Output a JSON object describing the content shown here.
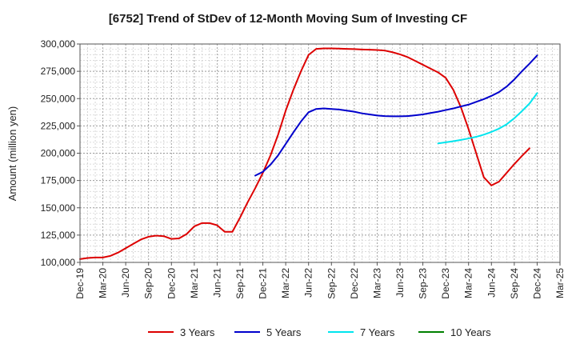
{
  "chart_data": {
    "type": "line",
    "title": "[6752]  Trend of StDev of 12-Month Moving Sum of Investing CF",
    "xlabel": "",
    "ylabel": "Amount (million yen)",
    "ylim": [
      100000,
      300000
    ],
    "yticks": [
      100000,
      125000,
      150000,
      175000,
      200000,
      225000,
      250000,
      275000,
      300000
    ],
    "ytick_labels": [
      "100,000",
      "125,000",
      "150,000",
      "175,000",
      "200,000",
      "225,000",
      "250,000",
      "275,000",
      "300,000"
    ],
    "xticks": [
      "Dec-19",
      "Mar-20",
      "Jun-20",
      "Sep-20",
      "Dec-20",
      "Mar-21",
      "Jun-21",
      "Sep-21",
      "Dec-21",
      "Mar-22",
      "Jun-22",
      "Sep-22",
      "Dec-22",
      "Mar-23",
      "Jun-23",
      "Sep-23",
      "Dec-23",
      "Mar-24",
      "Jun-24",
      "Sep-24",
      "Dec-24",
      "Mar-25"
    ],
    "x_start": "Dec-19",
    "grid": true,
    "legend_position": "bottom",
    "series": [
      {
        "name": "3 Years",
        "color": "#dd0000",
        "points": [
          [
            "Dec-19",
            103000
          ],
          [
            "Jan-20",
            104000
          ],
          [
            "Feb-20",
            104500
          ],
          [
            "Mar-20",
            104500
          ],
          [
            "Apr-20",
            106000
          ],
          [
            "May-20",
            109000
          ],
          [
            "Jun-20",
            113000
          ],
          [
            "Jul-20",
            117000
          ],
          [
            "Aug-20",
            121000
          ],
          [
            "Sep-20",
            123500
          ],
          [
            "Oct-20",
            124500
          ],
          [
            "Nov-20",
            124000
          ],
          [
            "Dec-20",
            121500
          ],
          [
            "Jan-21",
            122000
          ],
          [
            "Feb-21",
            126000
          ],
          [
            "Mar-21",
            133000
          ],
          [
            "Apr-21",
            136000
          ],
          [
            "May-21",
            136000
          ],
          [
            "Jun-21",
            134000
          ],
          [
            "Jul-21",
            128000
          ],
          [
            "Aug-21",
            128000
          ],
          [
            "Sep-21",
            141000
          ],
          [
            "Oct-21",
            155000
          ],
          [
            "Nov-21",
            168000
          ],
          [
            "Dec-21",
            182000
          ],
          [
            "Jan-22",
            198000
          ],
          [
            "Feb-22",
            217000
          ],
          [
            "Mar-22",
            239000
          ],
          [
            "Apr-22",
            258000
          ],
          [
            "May-22",
            275000
          ],
          [
            "Jun-22",
            290000
          ],
          [
            "Jul-22",
            295500
          ],
          [
            "Aug-22",
            296000
          ],
          [
            "Sep-22",
            296000
          ],
          [
            "Oct-22",
            295800
          ],
          [
            "Nov-22",
            295500
          ],
          [
            "Dec-22",
            295300
          ],
          [
            "Jan-23",
            295000
          ],
          [
            "Feb-23",
            294800
          ],
          [
            "Mar-23",
            294500
          ],
          [
            "Apr-23",
            294000
          ],
          [
            "May-23",
            292500
          ],
          [
            "Jun-23",
            290500
          ],
          [
            "Jul-23",
            288000
          ],
          [
            "Aug-23",
            284500
          ],
          [
            "Sep-23",
            281000
          ],
          [
            "Oct-23",
            277500
          ],
          [
            "Nov-23",
            274000
          ],
          [
            "Dec-23",
            269000
          ],
          [
            "Jan-24",
            258000
          ],
          [
            "Feb-24",
            242000
          ],
          [
            "Mar-24",
            222000
          ],
          [
            "Apr-24",
            200000
          ],
          [
            "May-24",
            178000
          ],
          [
            "Jun-24",
            170500
          ],
          [
            "Jul-24",
            174000
          ],
          [
            "Aug-24",
            182000
          ],
          [
            "Sep-24",
            190000
          ],
          [
            "Oct-24",
            197500
          ],
          [
            "Nov-24",
            204500
          ]
        ]
      },
      {
        "name": "5 Years",
        "color": "#0000cc",
        "points": [
          [
            "Nov-21",
            179500
          ],
          [
            "Dec-21",
            183000
          ],
          [
            "Jan-22",
            189500
          ],
          [
            "Feb-22",
            198000
          ],
          [
            "Mar-22",
            208500
          ],
          [
            "Apr-22",
            219000
          ],
          [
            "May-22",
            229000
          ],
          [
            "Jun-22",
            237500
          ],
          [
            "Jul-22",
            240500
          ],
          [
            "Aug-22",
            241000
          ],
          [
            "Sep-22",
            240500
          ],
          [
            "Oct-22",
            240000
          ],
          [
            "Nov-22",
            239000
          ],
          [
            "Dec-22",
            238000
          ],
          [
            "Jan-23",
            236500
          ],
          [
            "Feb-23",
            235500
          ],
          [
            "Mar-23",
            234500
          ],
          [
            "Apr-23",
            234000
          ],
          [
            "May-23",
            233800
          ],
          [
            "Jun-23",
            233800
          ],
          [
            "Jul-23",
            234000
          ],
          [
            "Aug-23",
            234700
          ],
          [
            "Sep-23",
            235500
          ],
          [
            "Oct-23",
            236800
          ],
          [
            "Nov-23",
            238000
          ],
          [
            "Dec-23",
            239500
          ],
          [
            "Jan-24",
            241000
          ],
          [
            "Feb-24",
            242800
          ],
          [
            "Mar-24",
            244500
          ],
          [
            "Apr-24",
            247000
          ],
          [
            "May-24",
            249500
          ],
          [
            "Jun-24",
            252500
          ],
          [
            "Jul-24",
            256000
          ],
          [
            "Aug-24",
            261000
          ],
          [
            "Sep-24",
            267500
          ],
          [
            "Oct-24",
            275000
          ],
          [
            "Nov-24",
            282000
          ],
          [
            "Dec-24",
            289500
          ]
        ]
      },
      {
        "name": "7 Years",
        "color": "#00e5ee",
        "points": [
          [
            "Nov-23",
            209000
          ],
          [
            "Dec-23",
            210000
          ],
          [
            "Jan-24",
            211000
          ],
          [
            "Feb-24",
            212200
          ],
          [
            "Mar-24",
            213500
          ],
          [
            "Apr-24",
            215000
          ],
          [
            "May-24",
            217000
          ],
          [
            "Jun-24",
            219500
          ],
          [
            "Jul-24",
            222500
          ],
          [
            "Aug-24",
            226500
          ],
          [
            "Sep-24",
            232000
          ],
          [
            "Oct-24",
            238500
          ],
          [
            "Nov-24",
            245500
          ],
          [
            "Dec-24",
            255000
          ]
        ]
      },
      {
        "name": "10 Years",
        "color": "#008000",
        "points": []
      }
    ]
  }
}
